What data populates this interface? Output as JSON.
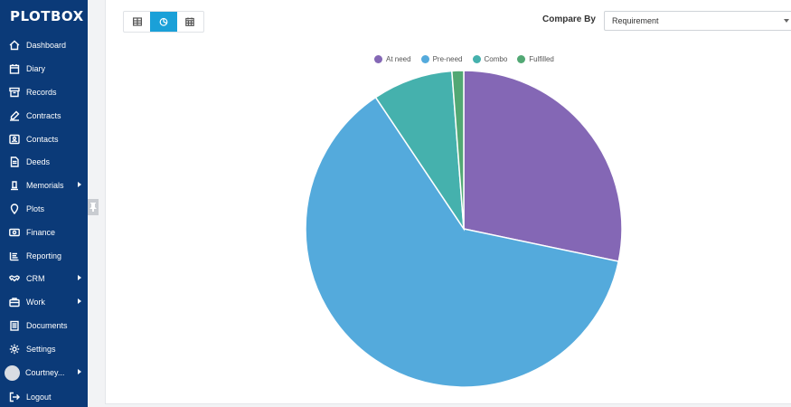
{
  "app": {
    "logo_text": "PLOTBOX"
  },
  "sidebar": {
    "items": [
      {
        "label": "Dashboard",
        "icon": "home-icon",
        "has_submenu": false
      },
      {
        "label": "Diary",
        "icon": "calendar-icon",
        "has_submenu": false
      },
      {
        "label": "Records",
        "icon": "archive-icon",
        "has_submenu": false
      },
      {
        "label": "Contracts",
        "icon": "edit-icon",
        "has_submenu": false
      },
      {
        "label": "Contacts",
        "icon": "contact-card-icon",
        "has_submenu": false
      },
      {
        "label": "Deeds",
        "icon": "document-icon",
        "has_submenu": false
      },
      {
        "label": "Memorials",
        "icon": "bell-icon",
        "has_submenu": true
      },
      {
        "label": "Plots",
        "icon": "map-pin-icon",
        "has_submenu": false
      },
      {
        "label": "Finance",
        "icon": "money-icon",
        "has_submenu": false
      },
      {
        "label": "Reporting",
        "icon": "report-list-icon",
        "has_submenu": false
      },
      {
        "label": "CRM",
        "icon": "handshake-icon",
        "has_submenu": true
      },
      {
        "label": "Work",
        "icon": "briefcase-icon",
        "has_submenu": true
      },
      {
        "label": "Documents",
        "icon": "documents-icon",
        "has_submenu": false
      },
      {
        "label": "Settings",
        "icon": "gear-icon",
        "has_submenu": false
      }
    ],
    "user": {
      "label": "Courtney...",
      "has_submenu": true
    },
    "logout": {
      "label": "Logout",
      "icon": "logout-icon"
    }
  },
  "toolbar": {
    "views": [
      {
        "name": "table-view",
        "icon": "table-icon",
        "active": false
      },
      {
        "name": "chart-view",
        "icon": "pie-chart-icon",
        "active": true
      },
      {
        "name": "calendar-view",
        "icon": "calendar-icon",
        "active": false
      }
    ],
    "compare_by_label": "Compare By",
    "compare_by_value": "Requirement"
  },
  "chart_data": {
    "type": "pie",
    "legend_position": "top",
    "series": [
      {
        "name": "At need",
        "value": 28.3,
        "color": "#8467b5"
      },
      {
        "name": "Pre-need",
        "value": 62.3,
        "color": "#54aadc"
      },
      {
        "name": "Combo",
        "value": 8.2,
        "color": "#45b1ad"
      },
      {
        "name": "Fulfilled",
        "value": 1.2,
        "color": "#52a874"
      }
    ]
  }
}
